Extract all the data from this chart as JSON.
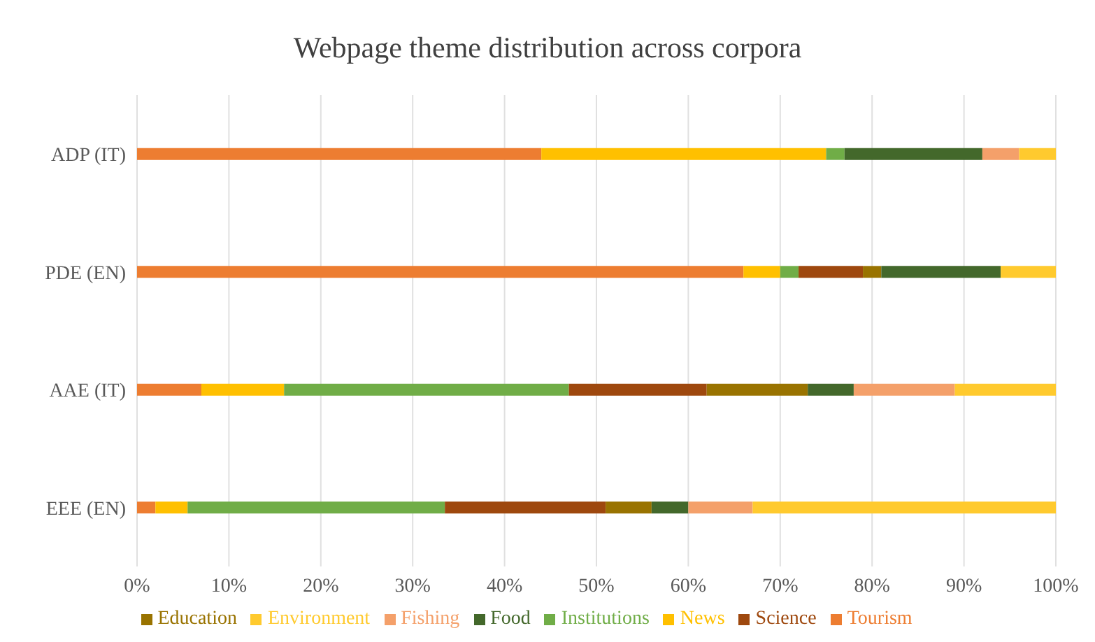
{
  "chart_data": {
    "type": "bar",
    "title": "Webpage theme distribution across corpora",
    "orientation": "horizontal",
    "stacked": true,
    "categories": [
      "ADP (IT)",
      "PDE (EN)",
      "AAE (IT)",
      "EEE (EN)"
    ],
    "series": [
      {
        "name": "Tourism",
        "color": "#ed7d31",
        "values": [
          44,
          66,
          7,
          2
        ]
      },
      {
        "name": "News",
        "color": "#ffc000",
        "values": [
          31,
          4,
          9,
          3.5
        ]
      },
      {
        "name": "Institutions",
        "color": "#70ad47",
        "values": [
          2,
          2,
          31,
          28
        ]
      },
      {
        "name": "Science",
        "color": "#9e480e",
        "values": [
          0,
          7,
          15,
          17.5
        ]
      },
      {
        "name": "Education",
        "color": "#997300",
        "values": [
          0,
          2,
          11,
          5
        ]
      },
      {
        "name": "Food",
        "color": "#43682b",
        "values": [
          15,
          13,
          5,
          4
        ]
      },
      {
        "name": "Fishing",
        "color": "#f4a06a",
        "values": [
          4,
          0,
          11,
          7
        ]
      },
      {
        "name": "Environment",
        "color": "#ffca2e",
        "values": [
          4,
          6,
          11,
          33
        ]
      }
    ],
    "xlim": [
      0,
      100
    ],
    "xticks": [
      {
        "value": 0,
        "label": "0%"
      },
      {
        "value": 10,
        "label": "10%"
      },
      {
        "value": 20,
        "label": "20%"
      },
      {
        "value": 30,
        "label": "30%"
      },
      {
        "value": 40,
        "label": "40%"
      },
      {
        "value": 50,
        "label": "50%"
      },
      {
        "value": 60,
        "label": "60%"
      },
      {
        "value": 70,
        "label": "70%"
      },
      {
        "value": 80,
        "label": "80%"
      },
      {
        "value": 90,
        "label": "90%"
      },
      {
        "value": 100,
        "label": "100%"
      }
    ],
    "grid": "x",
    "legend": "bottom"
  }
}
